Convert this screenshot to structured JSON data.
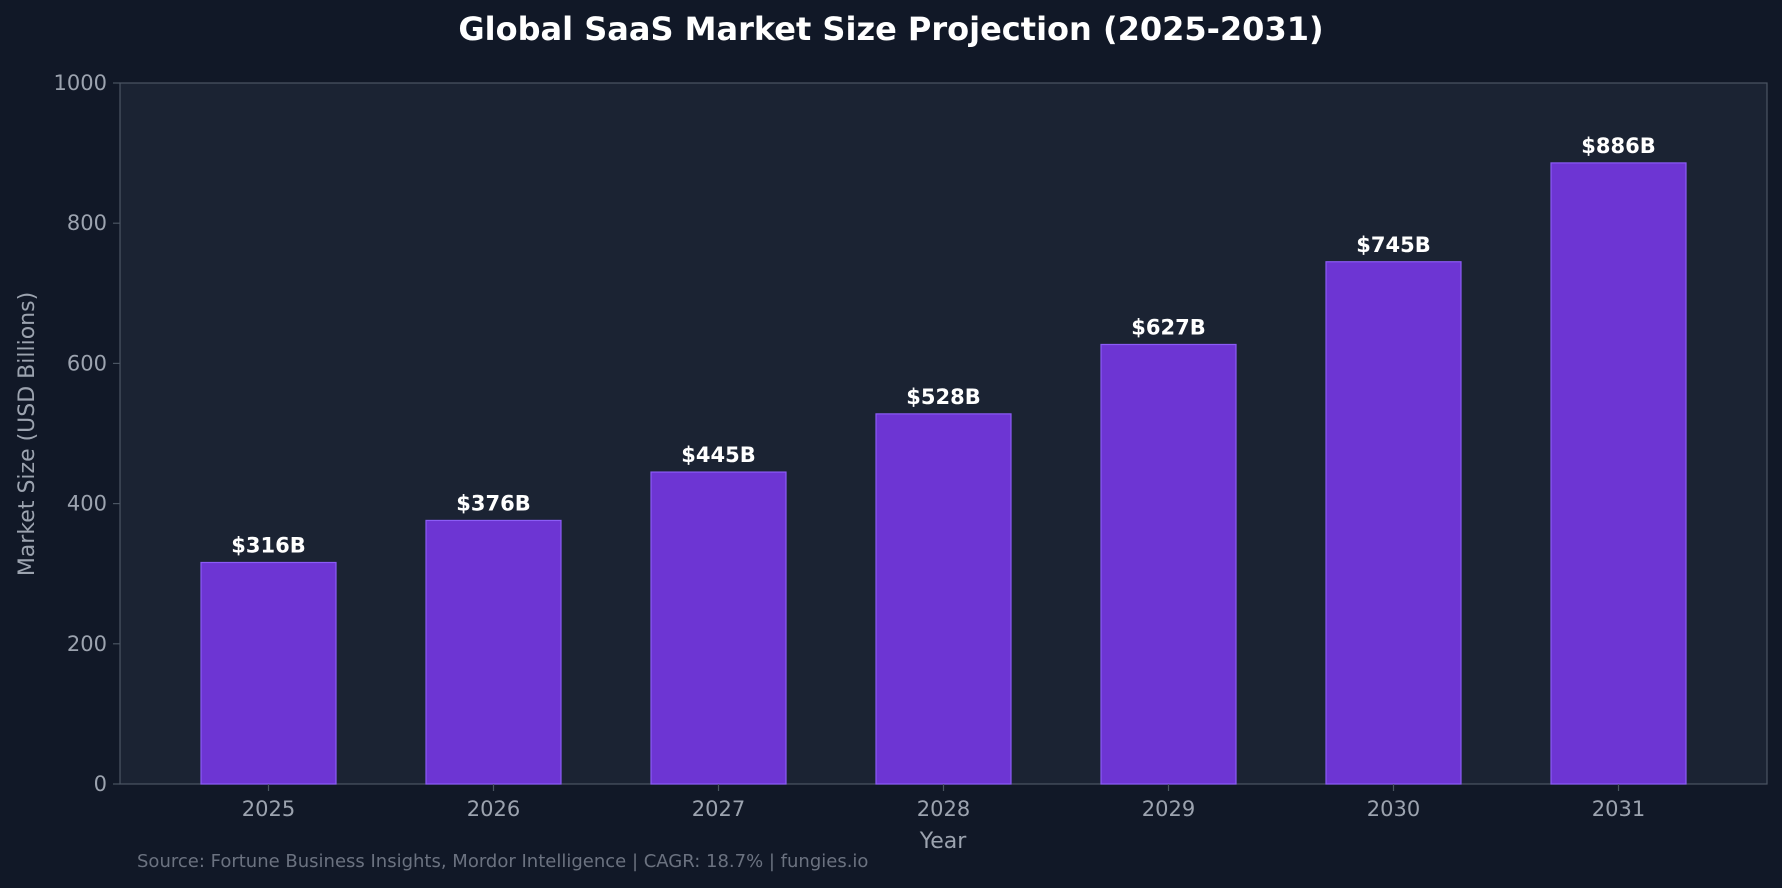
{
  "chart_data": {
    "type": "bar",
    "title": "Global SaaS Market Size Projection (2025-2031)",
    "xlabel": "Year",
    "ylabel": "Market Size (USD Billions)",
    "categories": [
      "2025",
      "2026",
      "2027",
      "2028",
      "2029",
      "2030",
      "2031"
    ],
    "values": [
      316,
      376,
      445,
      528,
      627,
      745,
      886
    ],
    "data_labels": [
      "$316B",
      "$376B",
      "$445B",
      "$528B",
      "$627B",
      "$745B",
      "$886B"
    ],
    "ylim": [
      0,
      1000
    ],
    "yticks": [
      0,
      200,
      400,
      600,
      800,
      1000
    ],
    "grid": false,
    "legend": "none"
  },
  "source_note": "Source: Fortune Business Insights, Mordor Intelligence | CAGR: 18.7% | fungies.io",
  "colors": {
    "background": "#111827",
    "plot_background": "#1B2333",
    "bar_fill": "#6D35D3",
    "bar_edge": "#8B5CF6",
    "axis": "#4B5563",
    "tick_text": "#9CA3AF",
    "title_text": "#FFFFFF",
    "data_label_text": "#FFFFFF",
    "source_text": "#6B7280"
  }
}
